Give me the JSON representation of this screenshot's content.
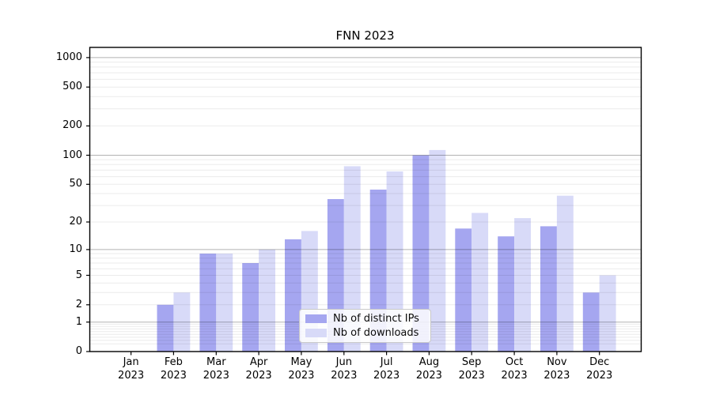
{
  "title": "FNN 2023",
  "chart_data": {
    "type": "bar",
    "categories": [
      "Jan 2023",
      "Feb 2023",
      "Mar 2023",
      "Apr 2023",
      "May 2023",
      "Jun 2023",
      "Jul 2023",
      "Aug 2023",
      "Sep 2023",
      "Oct 2023",
      "Nov 2023",
      "Dec 2023"
    ],
    "months": [
      "Jan",
      "Feb",
      "Mar",
      "Apr",
      "May",
      "Jun",
      "Jul",
      "Aug",
      "Sep",
      "Oct",
      "Nov",
      "Dec"
    ],
    "year": "2023",
    "series": [
      {
        "name": "Nb of distinct IPs",
        "color": "#a5a6f0",
        "values": [
          0,
          2,
          9,
          7,
          13,
          35,
          44,
          100,
          17,
          14,
          18,
          3
        ]
      },
      {
        "name": "Nb of downloads",
        "color": "#d8daf8",
        "values": [
          0,
          3,
          9,
          10,
          16,
          77,
          68,
          113,
          25,
          22,
          38,
          5
        ]
      }
    ],
    "yscale": "log1p",
    "y_ticks": [
      0,
      1,
      2,
      5,
      10,
      20,
      50,
      100,
      200,
      500,
      1000
    ],
    "y_tick_labels": [
      "0",
      "1",
      "2",
      "5",
      "10",
      "20",
      "50",
      "100",
      "200",
      "500",
      "1000"
    ],
    "y_major_gridlines": [
      1,
      10,
      100,
      1000
    ],
    "ylim": [
      0,
      1270
    ],
    "xlabel": "",
    "ylabel": "",
    "grid": true,
    "legend_position": "lower center",
    "colors": {
      "background": "#ffffff",
      "spine": "#000000",
      "major_grid": "rgba(0,0,0,0.30)",
      "minor_grid": "rgba(0,0,0,0.08)"
    }
  }
}
